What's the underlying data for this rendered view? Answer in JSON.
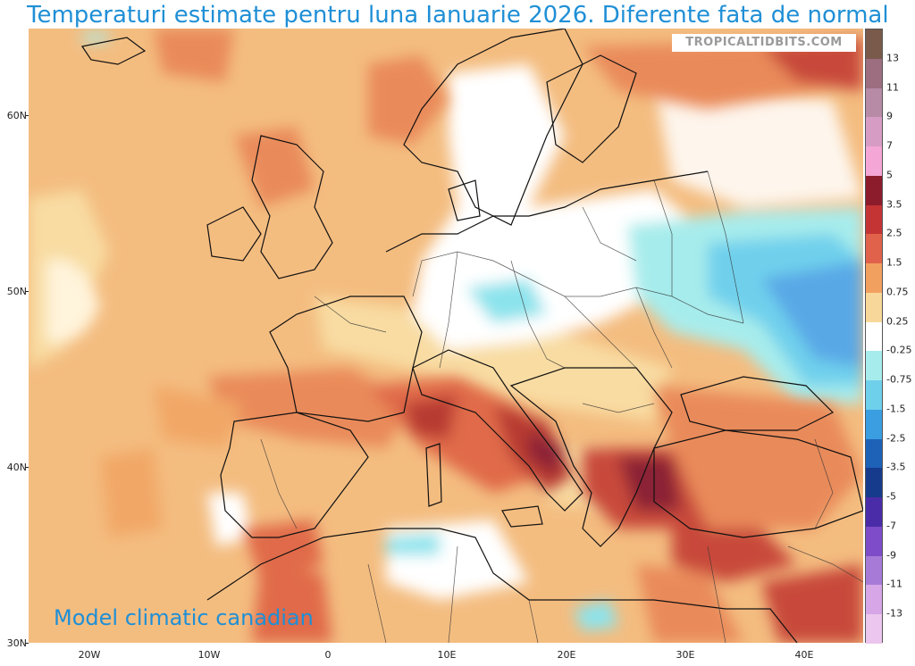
{
  "title": "Temperaturi estimate pentru luna Ianuarie 2026. Diferente fata de normal",
  "watermark": "TROPICALTIDBITS.COM",
  "model_label": "Model climatic canadian",
  "map": {
    "lat_labels": [
      "60N",
      "50N",
      "40N",
      "30N"
    ],
    "lon_labels": [
      "20W",
      "10W",
      "0",
      "10E",
      "20E",
      "30E",
      "40E"
    ]
  },
  "colorbar": {
    "labels": [
      "13",
      "11",
      "9",
      "7",
      "5",
      "3.5",
      "2.5",
      "1.5",
      "0.75",
      "0.25",
      "-0.25",
      "-0.75",
      "-1.5",
      "-2.5",
      "-3.5",
      "-5",
      "-7",
      "-9",
      "-11",
      "-13"
    ],
    "colors": [
      "#7a5a4a",
      "#9c6e80",
      "#b78aa6",
      "#d79cc4",
      "#f4a6d6",
      "#8c1c2c",
      "#c43434",
      "#e0624a",
      "#f2a060",
      "#f8d89a",
      "#ffffff",
      "#a7ecec",
      "#6fd0ec",
      "#3a9ee0",
      "#1e62b8",
      "#163a8c",
      "#4a2ca8",
      "#7e4cc8",
      "#a87ad8",
      "#d6a6e6",
      "#ecc6ee"
    ]
  },
  "colors": {
    "title": "#1f8fd6",
    "warm_light": "#f6cf8a",
    "warm": "#f1a766",
    "hot": "#e36c46",
    "very_hot": "#b83a33",
    "extreme": "#8b2435",
    "cool": "#8ce3ec",
    "cold": "#58a8e6"
  }
}
